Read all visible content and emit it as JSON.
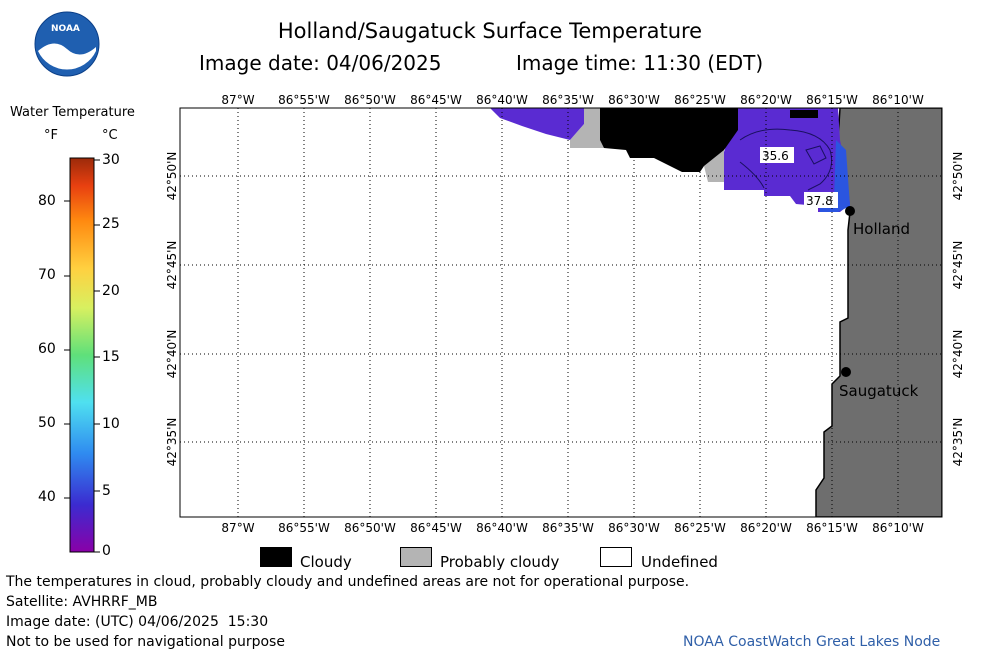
{
  "header": {
    "title": "Holland/Saugatuck Surface Temperature",
    "image_date_label": "Image date: 04/06/2025",
    "image_time_label": "Image time: 11:30 (EDT)"
  },
  "logo": {
    "text": "NOAA"
  },
  "colorbar": {
    "title": "Water Temperature",
    "unit_f": "°F",
    "unit_c": "°C",
    "f_ticks": [
      "80",
      "70",
      "60",
      "50",
      "40"
    ],
    "c_ticks": [
      "30",
      "25",
      "20",
      "15",
      "10",
      "5",
      "0"
    ]
  },
  "map": {
    "lon_labels": [
      "87°W",
      "86°55'W",
      "86°50'W",
      "86°45'W",
      "86°40'W",
      "86°35'W",
      "86°30'W",
      "86°25'W",
      "86°20'W",
      "86°15'W",
      "86°10'W"
    ],
    "lat_labels": [
      "42°50'N",
      "42°45'N",
      "42°40'N",
      "42°35'N"
    ],
    "cities": [
      "Holland",
      "Saugatuck"
    ],
    "contour_labels": [
      "35.6",
      "37.8"
    ],
    "colors": {
      "land": "#6e6e6e",
      "cloud": "#000000",
      "probably_cloudy": "#b4b4b4",
      "water_cold": "#5a2bd2",
      "water_warm": "#2b55e0"
    }
  },
  "legend": {
    "cloudy": "Cloudy",
    "probably_cloudy": "Probably cloudy",
    "undefined": "Undefined"
  },
  "footer": {
    "disclaimer": "The temperatures in cloud, probably cloudy and undefined areas are not for operational purpose.",
    "satellite": "Satellite: AVHRRF_MB",
    "utc_date": "Image date: (UTC) 04/06/2025  15:30",
    "nav_warning": "Not to be used for navigational purpose",
    "credit": "NOAA CoastWatch Great Lakes Node"
  }
}
